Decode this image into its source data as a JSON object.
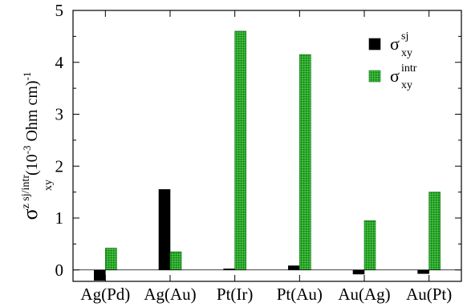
{
  "chart_data": {
    "type": "bar",
    "categories": [
      "Ag(Pd)",
      "Ag(Au)",
      "Pt(Ir)",
      "Pt(Au)",
      "Au(Ag)",
      "Au(Pt)"
    ],
    "series": [
      {
        "name": "σ_xy^sj",
        "label_base": "σ",
        "label_sub": "xy",
        "label_sup": "sj",
        "color": "#000000",
        "values": [
          -0.2,
          1.55,
          0.02,
          0.08,
          -0.08,
          -0.07
        ]
      },
      {
        "name": "σ_xy^intr",
        "label_base": "σ",
        "label_sub": "xy",
        "label_sup": "intr",
        "color": "#1a9a1a",
        "values": [
          0.42,
          0.35,
          4.6,
          4.15,
          0.95,
          1.5
        ]
      }
    ],
    "y_ticks": [
      "0",
      "1",
      "2",
      "3",
      "4",
      "5"
    ],
    "ylim": [
      -0.22,
      5.0
    ],
    "ylabel": {
      "base": "σ",
      "sup": "z sj/intr",
      "sub": "xy",
      "units": "(10",
      "units_exp": "-3",
      "units_rest": " Ohm cm)",
      "units_exp2": "-1"
    },
    "xlabel": "",
    "title": "",
    "legend_position": "top-right",
    "grid": false
  }
}
